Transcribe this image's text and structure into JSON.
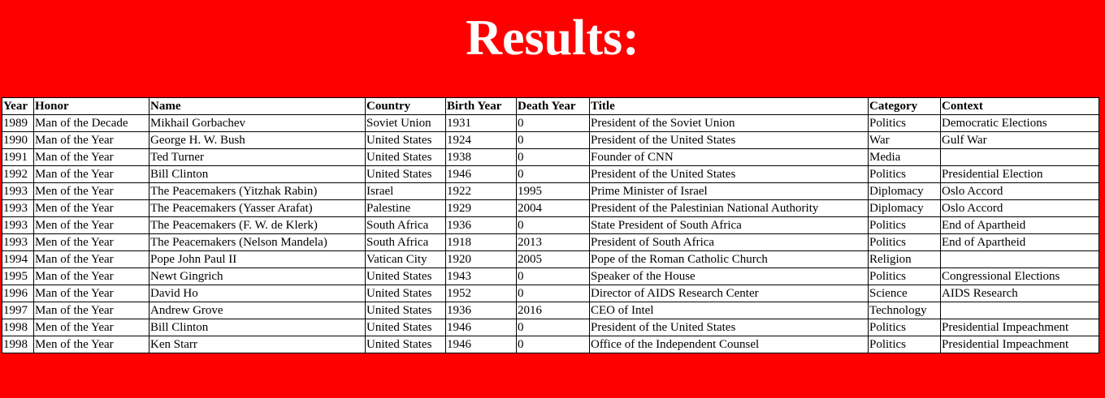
{
  "page": {
    "title": "Results:",
    "background_color": "#ff0000"
  },
  "table": {
    "headers": [
      "Year",
      "Honor",
      "Name",
      "Country",
      "Birth Year",
      "Death Year",
      "Title",
      "Category",
      "Context"
    ],
    "rows": [
      [
        "1989",
        "Man of the Decade",
        "Mikhail Gorbachev",
        "Soviet Union",
        "1931",
        "0",
        "President of the Soviet Union",
        "Politics",
        "Democratic Elections"
      ],
      [
        "1990",
        "Man of the Year",
        "George H. W. Bush",
        "United States",
        "1924",
        "0",
        "President of the United States",
        "War",
        "Gulf War"
      ],
      [
        "1991",
        "Man of the Year",
        "Ted Turner",
        "United States",
        "1938",
        "0",
        "Founder of CNN",
        "Media",
        ""
      ],
      [
        "1992",
        "Man of the Year",
        "Bill Clinton",
        "United States",
        "1946",
        "0",
        "President of the United States",
        "Politics",
        "Presidential Election"
      ],
      [
        "1993",
        "Men of the Year",
        "The Peacemakers (Yitzhak Rabin)",
        "Israel",
        "1922",
        "1995",
        "Prime Minister of Israel",
        "Diplomacy",
        "Oslo Accord"
      ],
      [
        "1993",
        "Men of the Year",
        "The Peacemakers (Yasser Arafat)",
        "Palestine",
        "1929",
        "2004",
        "President of the Palestinian National Authority",
        "Diplomacy",
        "Oslo Accord"
      ],
      [
        "1993",
        "Men of the Year",
        "The Peacemakers (F. W. de Klerk)",
        "South Africa",
        "1936",
        "0",
        "State President of South Africa",
        "Politics",
        "End of Apartheid"
      ],
      [
        "1993",
        "Men of the Year",
        "The Peacemakers (Nelson Mandela)",
        "South Africa",
        "1918",
        "2013",
        "President of South Africa",
        "Politics",
        "End of Apartheid"
      ],
      [
        "1994",
        "Man of the Year",
        "Pope John Paul II",
        "Vatican City",
        "1920",
        "2005",
        "Pope of the Roman Catholic Church",
        "Religion",
        ""
      ],
      [
        "1995",
        "Man of the Year",
        "Newt Gingrich",
        "United States",
        "1943",
        "0",
        "Speaker of the House",
        "Politics",
        "Congressional Elections"
      ],
      [
        "1996",
        "Man of the Year",
        "David Ho",
        "United States",
        "1952",
        "0",
        "Director of AIDS Research Center",
        "Science",
        "AIDS Research"
      ],
      [
        "1997",
        "Man of the Year",
        "Andrew Grove",
        "United States",
        "1936",
        "2016",
        "CEO of Intel",
        "Technology",
        ""
      ],
      [
        "1998",
        "Men of the Year",
        "Bill Clinton",
        "United States",
        "1946",
        "0",
        "President of the United States",
        "Politics",
        "Presidential Impeachment"
      ],
      [
        "1998",
        "Men of the Year",
        "Ken Starr",
        "United States",
        "1946",
        "0",
        "Office of the Independent Counsel",
        "Politics",
        "Presidential Impeachment"
      ]
    ]
  }
}
